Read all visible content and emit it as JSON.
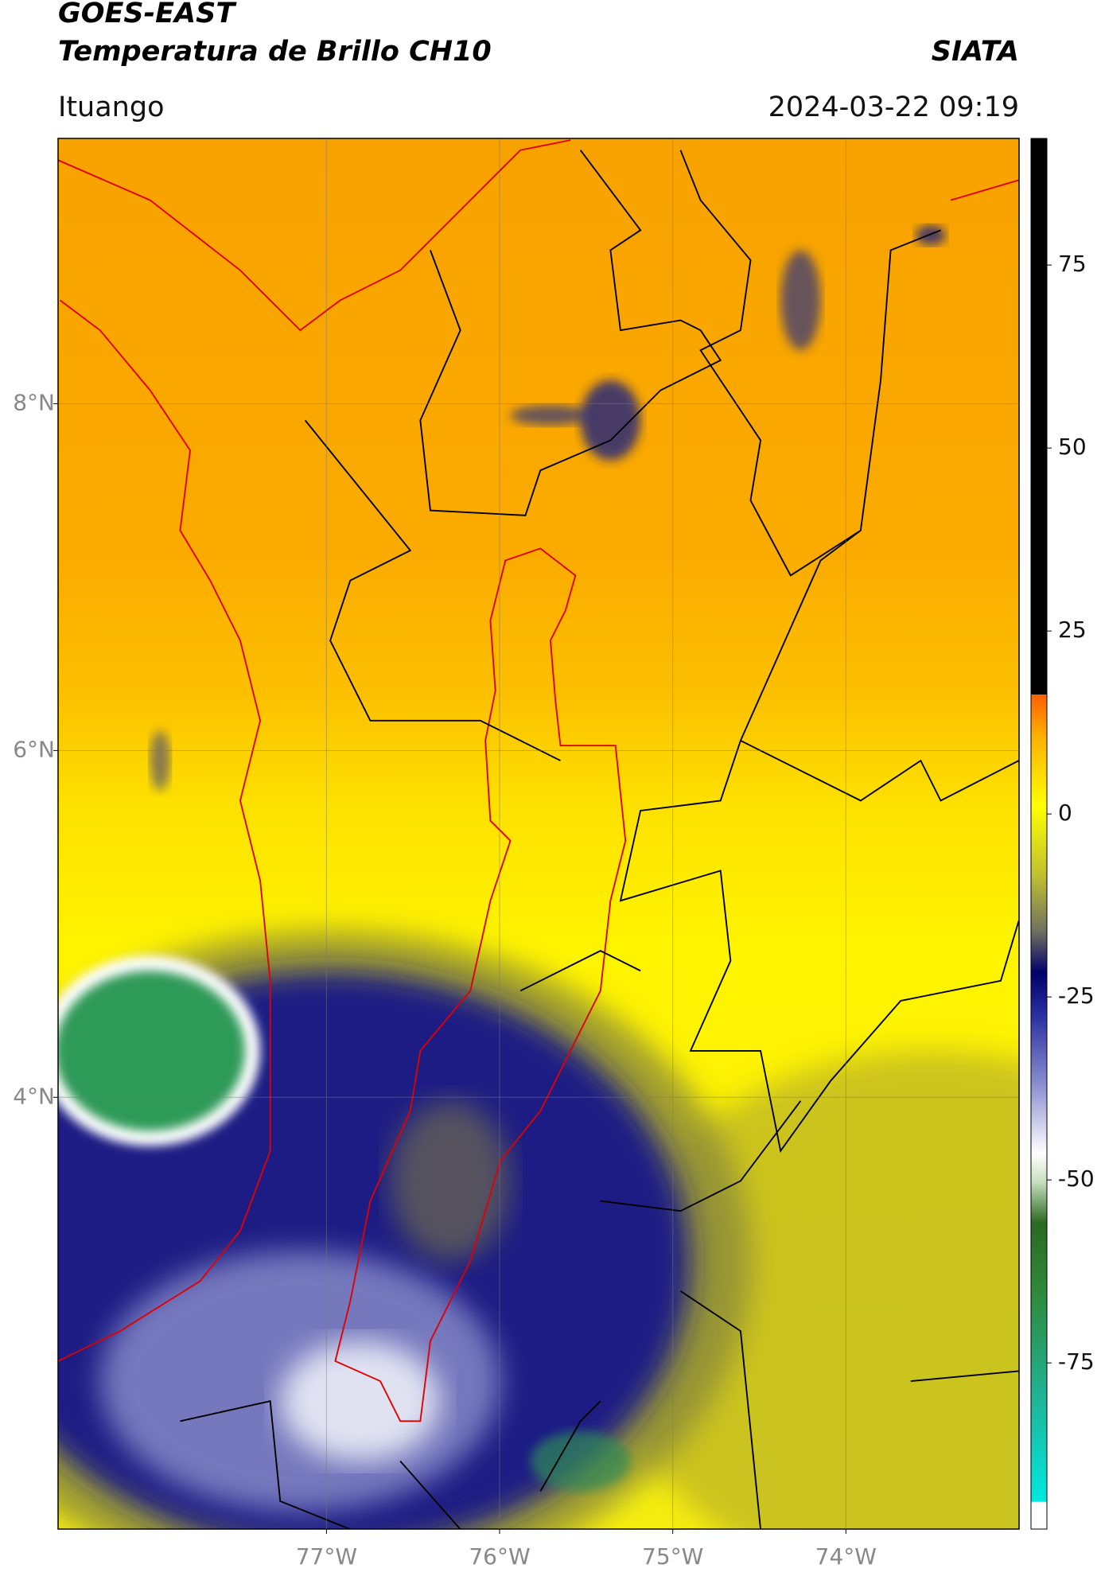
{
  "header": {
    "title": "GOES-EAST",
    "subtitle": "Temperatura de Brillo CH10",
    "org": "SIATA",
    "location": "Ituango",
    "datetime": "2024-03-22 09:19"
  },
  "map": {
    "lonlim": [
      -78.55,
      -73.0
    ],
    "latlim": [
      1.51,
      9.53
    ],
    "lonticks": [
      {
        "value": -77,
        "label": "77°W"
      },
      {
        "value": -76,
        "label": "76°W"
      },
      {
        "value": -75,
        "label": "75°W"
      },
      {
        "value": -74,
        "label": "74°W"
      }
    ],
    "latticks": [
      {
        "value": 8,
        "label": "8°N"
      },
      {
        "value": 6,
        "label": "6°N"
      },
      {
        "value": 4,
        "label": "4°N"
      }
    ],
    "grid": true
  },
  "colorbar": {
    "lim": [
      -97.7,
      92.3
    ],
    "ticks": [
      75,
      50,
      25,
      0,
      -25,
      -50,
      -75
    ]
  }
}
